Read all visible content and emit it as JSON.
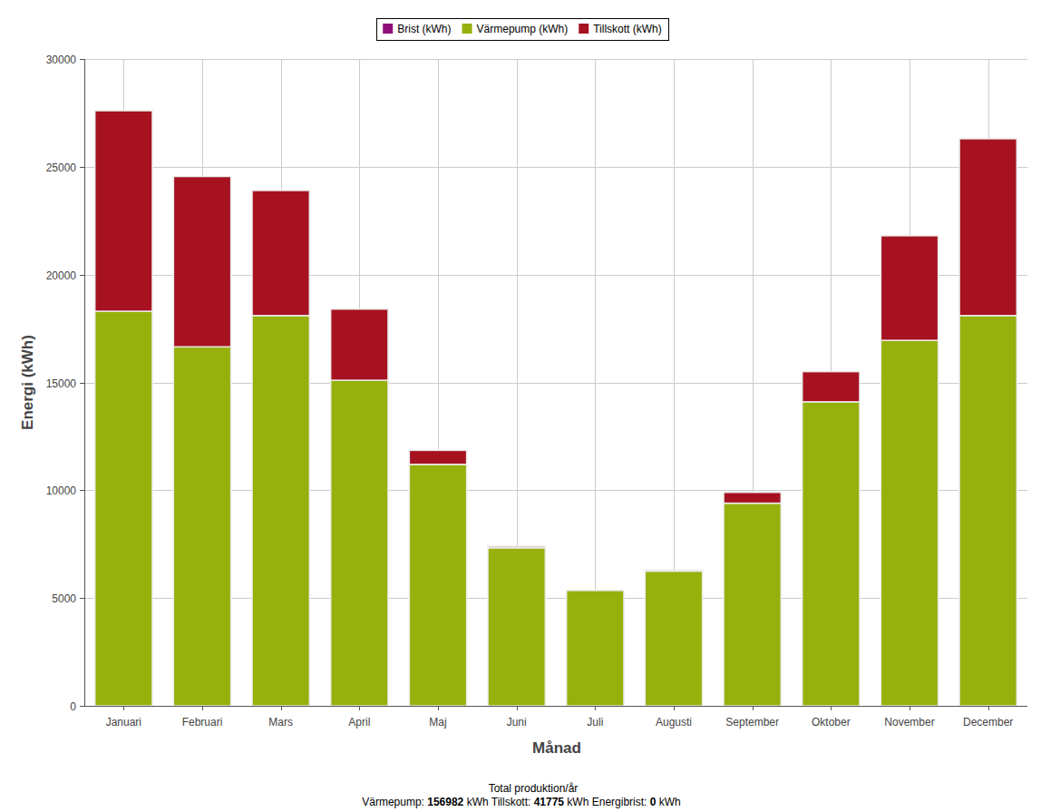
{
  "chart_data": {
    "type": "bar",
    "stacked": true,
    "grid": true,
    "legend": "top",
    "x_label": "Månad",
    "y_label": "Energi (kWh)",
    "categories": [
      "Januari",
      "Februari",
      "Mars",
      "April",
      "Maj",
      "Juni",
      "Juli",
      "Augusti",
      "September",
      "Oktober",
      "November",
      "December"
    ],
    "series": [
      {
        "name": "Brist (kWh)",
        "color": "#8e1078",
        "values": [
          0,
          0,
          0,
          0,
          0,
          0,
          0,
          0,
          0,
          0,
          0,
          0
        ]
      },
      {
        "name": "Värmepump (kWh)",
        "color": "#96b00c",
        "values": [
          18300,
          16650,
          18100,
          15100,
          11200,
          7330,
          5350,
          6250,
          9400,
          14100,
          16950,
          18100
        ]
      },
      {
        "name": "Tillskott (kWh)",
        "color": "#a61220",
        "values": [
          9300,
          7900,
          5800,
          3300,
          650,
          70,
          0,
          50,
          500,
          1400,
          4850,
          8200
        ]
      }
    ],
    "ylim": [
      0,
      30000
    ],
    "yticks": [
      0,
      5000,
      10000,
      15000,
      20000,
      25000,
      30000
    ],
    "caption": "Total produktion/år",
    "totals": [
      {
        "label": "Värmepump:",
        "value": 156982,
        "unit": "kWh"
      },
      {
        "label": "Tillskott:",
        "value": 41775,
        "unit": "kWh"
      },
      {
        "label": "Energibrist:",
        "value": 0,
        "unit": "kWh"
      }
    ]
  }
}
